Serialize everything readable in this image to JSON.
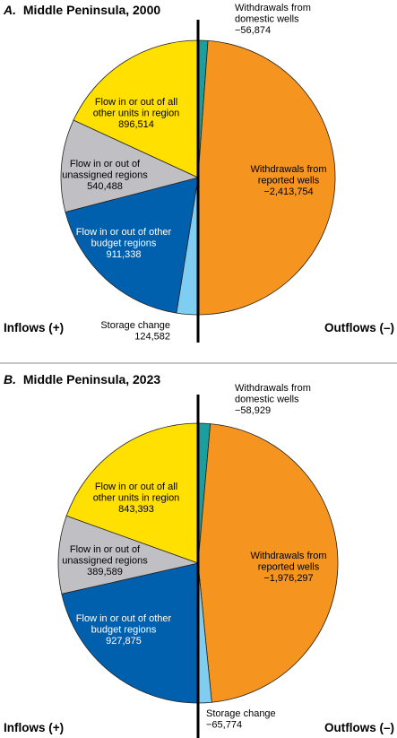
{
  "chart_data": [
    {
      "type": "pie",
      "panel_letter": "A.",
      "title": "Middle Peninsula, 2000",
      "inflows_label": "Inflows (+)",
      "outflows_label": "Outflows (–)",
      "slices": [
        {
          "side": "outflow",
          "label_lines": [
            "Withdrawals from",
            "domestic wells"
          ],
          "value_text": "−56,874",
          "value": -56874,
          "color": "#1b9e9e"
        },
        {
          "side": "outflow",
          "label_lines": [
            "Withdrawals from",
            "reported wells"
          ],
          "value_text": "−2,413,754",
          "value": -2413754,
          "color": "#f5941e"
        },
        {
          "side": "inflow",
          "label_lines": [
            "Storage change"
          ],
          "value_text": "124,582",
          "value": 124582,
          "color": "#7fcdf0"
        },
        {
          "side": "inflow",
          "label_lines": [
            "Flow in or out of other",
            "budget regions"
          ],
          "value_text": "911,338",
          "value": 911338,
          "color": "#0060ae"
        },
        {
          "side": "inflow",
          "label_lines": [
            "Flow in or out of",
            "unassigned regions"
          ],
          "value_text": "540,488",
          "value": 540488,
          "color": "#c0c0c4"
        },
        {
          "side": "inflow",
          "label_lines": [
            "Flow in or out of all",
            "other units in region"
          ],
          "value_text": "896,514",
          "value": 896514,
          "color": "#ffe000"
        }
      ]
    },
    {
      "type": "pie",
      "panel_letter": "B.",
      "title": "Middle Peninsula, 2023",
      "inflows_label": "Inflows (+)",
      "outflows_label": "Outflows (–)",
      "slices": [
        {
          "side": "outflow",
          "label_lines": [
            "Withdrawals from",
            "domestic wells"
          ],
          "value_text": "−58,929",
          "value": -58929,
          "color": "#1b9e9e"
        },
        {
          "side": "outflow",
          "label_lines": [
            "Withdrawals from",
            "reported wells"
          ],
          "value_text": "−1,976,297",
          "value": -1976297,
          "color": "#f5941e"
        },
        {
          "side": "outflow",
          "label_lines": [
            "Storage change"
          ],
          "value_text": "−65,774",
          "value": -65774,
          "color": "#7fcdf0"
        },
        {
          "side": "inflow",
          "label_lines": [
            "Flow in or out of other",
            "budget regions"
          ],
          "value_text": "927,875",
          "value": 927875,
          "color": "#0060ae"
        },
        {
          "side": "inflow",
          "label_lines": [
            "Flow in or out of",
            "unassigned regions"
          ],
          "value_text": "389,589",
          "value": 389589,
          "color": "#c0c0c4"
        },
        {
          "side": "inflow",
          "label_lines": [
            "Flow in or out of all",
            "other units in region"
          ],
          "value_text": "843,393",
          "value": 843393,
          "color": "#ffe000"
        }
      ]
    }
  ]
}
